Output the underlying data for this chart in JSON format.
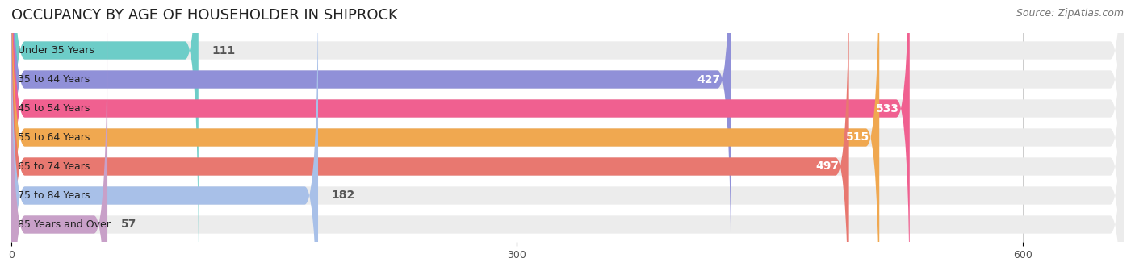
{
  "title": "OCCUPANCY BY AGE OF HOUSEHOLDER IN SHIPROCK",
  "source": "Source: ZipAtlas.com",
  "categories": [
    "Under 35 Years",
    "35 to 44 Years",
    "45 to 54 Years",
    "55 to 64 Years",
    "65 to 74 Years",
    "75 to 84 Years",
    "85 Years and Over"
  ],
  "values": [
    111,
    427,
    533,
    515,
    497,
    182,
    57
  ],
  "bar_colors": [
    "#6dcdc8",
    "#9090d8",
    "#f06090",
    "#f0a850",
    "#e87870",
    "#a8c0e8",
    "#c8a0c8"
  ],
  "bar_bg_color": "#ececec",
  "xlim": [
    0,
    660
  ],
  "xticks": [
    0,
    300,
    600
  ],
  "label_color_inside": "#ffffff",
  "label_color_outside": "#555555",
  "title_fontsize": 13,
  "source_fontsize": 9,
  "bar_label_fontsize": 10,
  "category_fontsize": 9,
  "figure_bg": "#ffffff",
  "axes_bg": "#ffffff",
  "bar_height": 0.62,
  "threshold_inside": 200
}
